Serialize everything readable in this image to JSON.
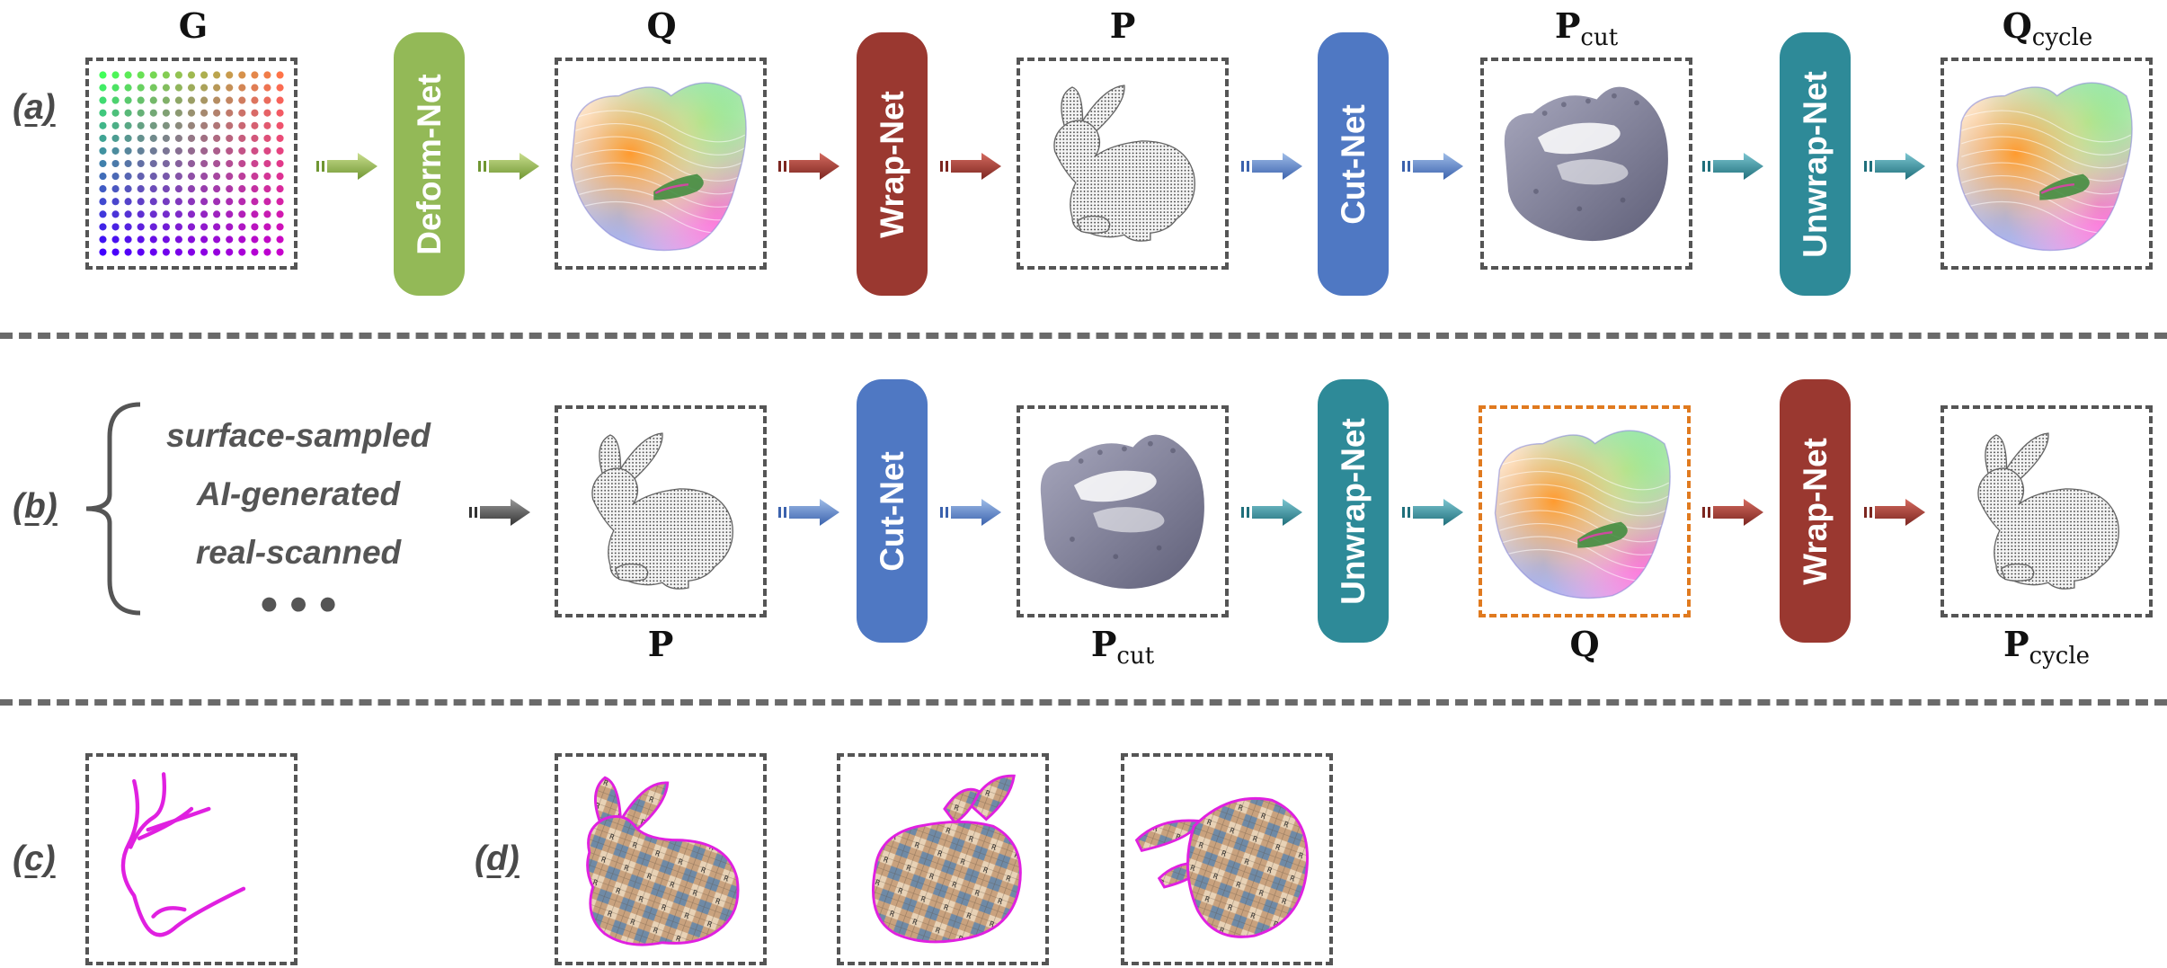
{
  "colors": {
    "deform": "#93b957",
    "wrap": "#9a3830",
    "cut": "#4f78c3",
    "unwrap": "#2e8a98",
    "frame": "#555555",
    "frame_highlight": "#e07a1f",
    "seam": "#e020e0",
    "arrow_dark": "#444444"
  },
  "row_a": {
    "label": "(a)",
    "titles": {
      "G": "G",
      "Q_hat": "Q",
      "P_hat": "P",
      "P_hat_cut_main": "P",
      "P_hat_cut_sub": "cut",
      "Q_hat_cycle_main": "Q",
      "Q_hat_cycle_sub": "cycle"
    },
    "nets": {
      "deform": "Deform-Net",
      "wrap": "Wrap-Net",
      "cut": "Cut-Net",
      "unwrap": "Unwrap-Net"
    }
  },
  "row_b": {
    "label": "(b)",
    "sources": [
      "surface-sampled",
      "AI-generated",
      "real-scanned"
    ],
    "ellipsis": "● ● ●",
    "titles": {
      "P": "P",
      "P_cut_main": "P",
      "P_cut_sub": "cut",
      "Q": "Q",
      "P_cycle_main": "P",
      "P_cycle_sub": "cycle"
    },
    "nets": {
      "cut": "Cut-Net",
      "unwrap": "Unwrap-Net",
      "wrap": "Wrap-Net"
    }
  },
  "row_c": {
    "label": "(c)"
  },
  "row_d": {
    "label": "(d)"
  }
}
